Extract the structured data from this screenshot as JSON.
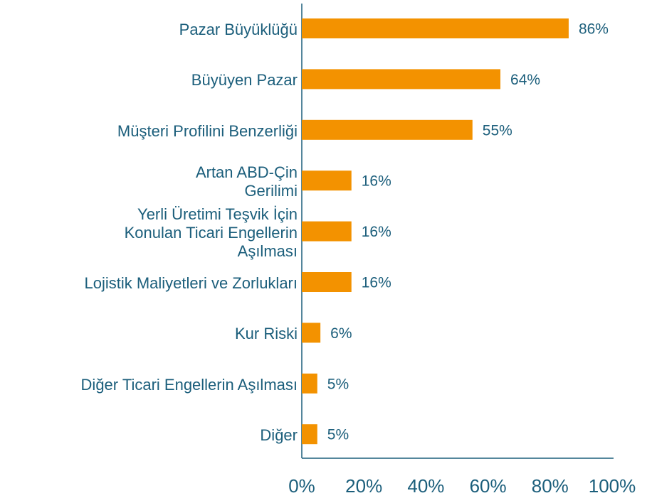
{
  "chart_data": {
    "type": "bar",
    "orientation": "horizontal",
    "categories": [
      "Pazar Büyüklüğü",
      "Büyüyen Pazar",
      "Müşteri Profilini Benzerliği",
      "Artan ABD-Çin\nGerilimi",
      "Yerli Üretimi Teşvik İçin\nKonulan Ticari Engellerin\nAşılması",
      "Lojistik Maliyetleri ve Zorlukları",
      "Kur Riski",
      "Diğer Ticari Engellerin Aşılması",
      "Diğer"
    ],
    "values": [
      86,
      64,
      55,
      16,
      16,
      16,
      6,
      5,
      5
    ],
    "value_labels": [
      "86%",
      "64%",
      "55%",
      "16%",
      "16%",
      "16%",
      "6%",
      "5%",
      "5%"
    ],
    "color": "#f39200",
    "xlim": [
      0,
      100
    ],
    "xticks": [
      {
        "value": 0,
        "label": "0%"
      },
      {
        "value": 20,
        "label": "20%"
      },
      {
        "value": 40,
        "label": "40%"
      },
      {
        "value": 60,
        "label": "60%"
      },
      {
        "value": 80,
        "label": "80%"
      },
      {
        "value": 100,
        "label": "100%"
      }
    ]
  }
}
